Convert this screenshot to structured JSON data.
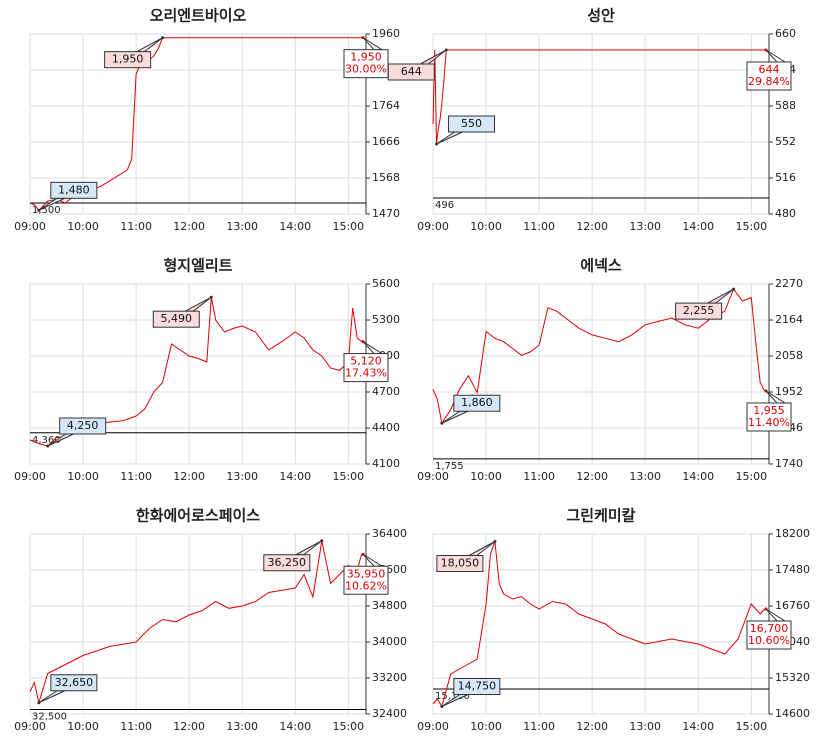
{
  "chart_data": [
    {
      "type": "line",
      "title": "오리엔트바이오",
      "color": "#e00000",
      "x": [
        "09:00",
        "09:05",
        "09:10",
        "09:20",
        "09:30",
        "09:40",
        "09:50",
        "10:00",
        "10:10",
        "10:20",
        "10:30",
        "10:40",
        "10:50",
        "10:55",
        "11:00",
        "11:05",
        "11:10",
        "11:15",
        "11:20",
        "11:25",
        "11:30",
        "12:00",
        "13:00",
        "14:00",
        "15:00",
        "15:15"
      ],
      "values": [
        1500,
        1495,
        1480,
        1505,
        1510,
        1500,
        1520,
        1525,
        1535,
        1545,
        1560,
        1575,
        1590,
        1620,
        1850,
        1880,
        1900,
        1890,
        1900,
        1920,
        1950,
        1950,
        1950,
        1950,
        1950,
        1950
      ],
      "xlim": [
        "09:00",
        "15:20"
      ],
      "xticks": [
        "09:00",
        "10:00",
        "11:00",
        "12:00",
        "13:00",
        "14:00",
        "15:00"
      ],
      "ylim": [
        1470,
        1960
      ],
      "yticks": [
        1470,
        1568,
        1666,
        1764,
        1862,
        1960
      ],
      "grid": true,
      "prev_close": {
        "value": 1500,
        "label": "1,500"
      },
      "low": {
        "x": "09:10",
        "value": 1480,
        "label": "1,480"
      },
      "high": {
        "x": "11:30",
        "value": 1950,
        "label": "1,950"
      },
      "last": {
        "value": 1950,
        "label": "1,950",
        "change": "30.00%"
      }
    },
    {
      "type": "line",
      "title": "성안",
      "color": "#e00000",
      "x": [
        "09:00",
        "09:02",
        "09:04",
        "09:06",
        "09:08",
        "09:10",
        "09:12",
        "09:15",
        "10:00",
        "11:00",
        "12:00",
        "13:00",
        "14:00",
        "15:00",
        "15:15"
      ],
      "values": [
        570,
        644,
        550,
        565,
        575,
        590,
        610,
        644,
        644,
        644,
        644,
        644,
        644,
        644,
        644
      ],
      "xlim": [
        "09:00",
        "15:20"
      ],
      "xticks": [
        "09:00",
        "10:00",
        "11:00",
        "12:00",
        "13:00",
        "14:00",
        "15:00"
      ],
      "ylim": [
        480,
        660
      ],
      "yticks": [
        480,
        516,
        552,
        588,
        624,
        660
      ],
      "grid": true,
      "prev_close": {
        "value": 496,
        "label": "496"
      },
      "low": {
        "x": "09:04",
        "value": 550,
        "label": "550"
      },
      "high": {
        "x": "09:15",
        "value": 644,
        "label": "644"
      },
      "last": {
        "value": 644,
        "label": "644",
        "change": "29.84%"
      }
    },
    {
      "type": "line",
      "title": "형지엘리트",
      "color": "#e00000",
      "x": [
        "09:00",
        "09:10",
        "09:20",
        "09:30",
        "09:40",
        "10:00",
        "10:15",
        "10:30",
        "10:45",
        "11:00",
        "11:10",
        "11:20",
        "11:30",
        "11:40",
        "11:50",
        "12:00",
        "12:10",
        "12:20",
        "12:25",
        "12:30",
        "12:40",
        "12:50",
        "13:00",
        "13:15",
        "13:30",
        "13:45",
        "14:00",
        "14:10",
        "14:20",
        "14:30",
        "14:40",
        "14:50",
        "15:00",
        "15:05",
        "15:10",
        "15:15"
      ],
      "values": [
        4300,
        4270,
        4250,
        4320,
        4330,
        4400,
        4430,
        4450,
        4460,
        4500,
        4560,
        4700,
        4780,
        5100,
        5050,
        5000,
        4980,
        4950,
        5490,
        5300,
        5200,
        5230,
        5250,
        5200,
        5050,
        5120,
        5200,
        5150,
        5050,
        5000,
        4900,
        4880,
        4950,
        5400,
        5150,
        5120
      ],
      "xlim": [
        "09:00",
        "15:20"
      ],
      "xticks": [
        "09:00",
        "10:00",
        "11:00",
        "12:00",
        "13:00",
        "14:00",
        "15:00"
      ],
      "ylim": [
        4100,
        5600
      ],
      "yticks": [
        4100,
        4400,
        4700,
        5000,
        5300,
        5600
      ],
      "grid": true,
      "prev_close": {
        "value": 4360,
        "label": "4,360"
      },
      "low": {
        "x": "09:20",
        "value": 4250,
        "label": "4,250"
      },
      "high": {
        "x": "12:25",
        "value": 5490,
        "label": "5,490"
      },
      "last": {
        "value": 5120,
        "label": "5,120",
        "change": "17.43%"
      }
    },
    {
      "type": "line",
      "title": "에넥스",
      "color": "#e00000",
      "x": [
        "09:00",
        "09:05",
        "09:10",
        "09:20",
        "09:30",
        "09:40",
        "09:50",
        "10:00",
        "10:10",
        "10:20",
        "10:30",
        "10:40",
        "10:50",
        "11:00",
        "11:10",
        "11:20",
        "11:30",
        "11:45",
        "12:00",
        "12:15",
        "12:30",
        "12:45",
        "13:00",
        "13:15",
        "13:30",
        "13:45",
        "14:00",
        "14:15",
        "14:30",
        "14:40",
        "14:50",
        "15:00",
        "15:05",
        "15:10",
        "15:15"
      ],
      "values": [
        1960,
        1930,
        1860,
        1900,
        1960,
        2000,
        1950,
        2130,
        2110,
        2100,
        2080,
        2060,
        2070,
        2090,
        2200,
        2190,
        2170,
        2140,
        2120,
        2110,
        2100,
        2120,
        2150,
        2160,
        2170,
        2150,
        2140,
        2170,
        2190,
        2255,
        2220,
        2230,
        2100,
        1980,
        1955
      ],
      "xlim": [
        "09:00",
        "15:20"
      ],
      "xticks": [
        "09:00",
        "10:00",
        "11:00",
        "12:00",
        "13:00",
        "14:00",
        "15:00"
      ],
      "ylim": [
        1740,
        2270
      ],
      "yticks": [
        1740,
        1846,
        1952,
        2058,
        2164,
        2270
      ],
      "grid": true,
      "prev_close": {
        "value": 1755,
        "label": "1,755"
      },
      "low": {
        "x": "09:10",
        "value": 1860,
        "label": "1,860"
      },
      "high": {
        "x": "14:40",
        "value": 2255,
        "label": "2,255"
      },
      "last": {
        "value": 1955,
        "label": "1,955",
        "change": "11.40%"
      }
    },
    {
      "type": "line",
      "title": "한화에어로스페이스",
      "color": "#e00000",
      "x": [
        "09:00",
        "09:05",
        "09:10",
        "09:20",
        "09:30",
        "09:40",
        "09:50",
        "10:00",
        "10:15",
        "10:30",
        "10:45",
        "11:00",
        "11:15",
        "11:30",
        "11:45",
        "12:00",
        "12:15",
        "12:30",
        "12:45",
        "13:00",
        "13:15",
        "13:30",
        "13:45",
        "14:00",
        "14:10",
        "14:20",
        "14:30",
        "14:40",
        "14:50",
        "15:00",
        "15:10",
        "15:15"
      ],
      "values": [
        32900,
        33100,
        32650,
        33300,
        33400,
        33500,
        33600,
        33700,
        33800,
        33900,
        33950,
        34000,
        34300,
        34500,
        34450,
        34600,
        34700,
        34900,
        34750,
        34800,
        34900,
        35100,
        35150,
        35200,
        35500,
        35000,
        36250,
        35300,
        35500,
        35700,
        35600,
        35950
      ],
      "xlim": [
        "09:00",
        "15:20"
      ],
      "xticks": [
        "09:00",
        "10:00",
        "11:00",
        "12:00",
        "13:00",
        "14:00",
        "15:00"
      ],
      "ylim": [
        32400,
        36400
      ],
      "yticks": [
        32400,
        33200,
        34000,
        34800,
        35600,
        36400
      ],
      "grid": true,
      "prev_close": {
        "value": 32500,
        "label": "32,500"
      },
      "low": {
        "x": "09:10",
        "value": 32650,
        "label": "32,650"
      },
      "high": {
        "x": "14:30",
        "value": 36250,
        "label": "36,250"
      },
      "last": {
        "value": 35950,
        "label": "35,950",
        "change": "10.62%"
      }
    },
    {
      "type": "line",
      "title": "그린케미칼",
      "color": "#e00000",
      "x": [
        "09:00",
        "09:05",
        "09:10",
        "09:20",
        "09:30",
        "09:40",
        "09:50",
        "10:00",
        "10:05",
        "10:10",
        "10:15",
        "10:20",
        "10:30",
        "10:40",
        "10:50",
        "11:00",
        "11:15",
        "11:30",
        "11:45",
        "12:00",
        "12:15",
        "12:30",
        "12:45",
        "13:00",
        "13:15",
        "13:30",
        "13:45",
        "14:00",
        "14:15",
        "14:30",
        "14:45",
        "15:00",
        "15:10",
        "15:15"
      ],
      "values": [
        14800,
        14900,
        14750,
        15400,
        15500,
        15600,
        15700,
        16800,
        17800,
        18050,
        17200,
        17000,
        16900,
        16950,
        16800,
        16700,
        16850,
        16800,
        16600,
        16500,
        16400,
        16200,
        16100,
        16000,
        16050,
        16100,
        16050,
        16000,
        15900,
        15800,
        16100,
        16800,
        16600,
        16700
      ],
      "xlim": [
        "09:00",
        "15:20"
      ],
      "xticks": [
        "09:00",
        "10:00",
        "11:00",
        "12:00",
        "13:00",
        "14:00",
        "15:00"
      ],
      "ylim": [
        14600,
        18200
      ],
      "yticks": [
        14600,
        15320,
        16040,
        16760,
        17480,
        18200
      ],
      "grid": true,
      "prev_close": {
        "value": 15100,
        "label": "15,100"
      },
      "low": {
        "x": "09:10",
        "value": 14750,
        "label": "14,750"
      },
      "high": {
        "x": "10:10",
        "value": 18050,
        "label": "18,050"
      },
      "last": {
        "value": 16700,
        "label": "16,700",
        "change": "10.60%"
      }
    }
  ]
}
